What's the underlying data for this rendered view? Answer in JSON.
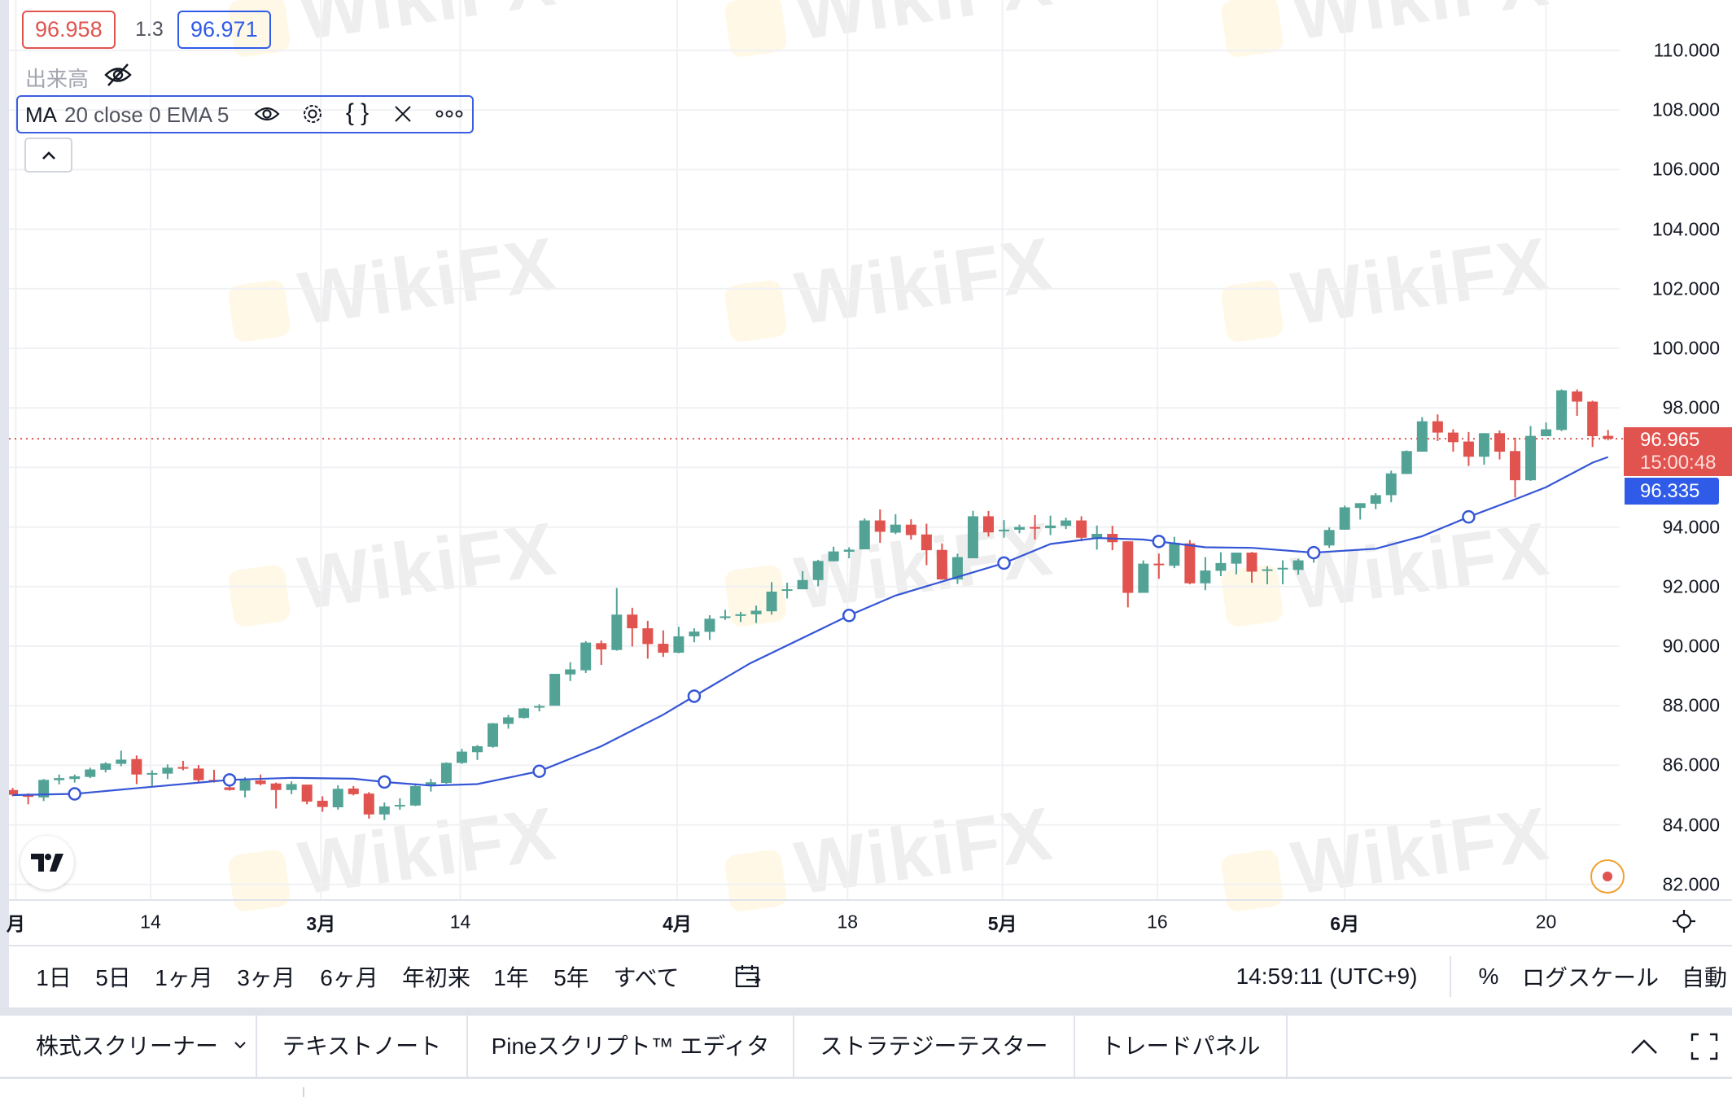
{
  "legend": {
    "bid": "96.958",
    "spread": "1.3",
    "ask": "96.971",
    "volume_label": "出来高",
    "indicator_name": "MA",
    "indicator_params": "20 close 0 EMA 5"
  },
  "watermark_text": "WikiFX",
  "price_axis": {
    "ticks": [
      "110.000",
      "108.000",
      "106.000",
      "104.000",
      "102.000",
      "100.000",
      "98.000",
      "94.000",
      "92.000",
      "90.000",
      "88.000",
      "86.000",
      "84.000",
      "82.000"
    ],
    "last_price": "96.965",
    "countdown": "15:00:48",
    "ma_value": "96.335"
  },
  "time_axis": {
    "ticks": [
      {
        "label": "月",
        "at_bar": 0.2,
        "bold": true
      },
      {
        "label": "14",
        "at_bar": 8.9,
        "bold": false
      },
      {
        "label": "3月",
        "at_bar": 19.9,
        "bold": true
      },
      {
        "label": "14",
        "at_bar": 28.9,
        "bold": false
      },
      {
        "label": "4月",
        "at_bar": 42.9,
        "bold": true
      },
      {
        "label": "18",
        "at_bar": 53.9,
        "bold": false
      },
      {
        "label": "5月",
        "at_bar": 63.9,
        "bold": true
      },
      {
        "label": "16",
        "at_bar": 73.9,
        "bold": false
      },
      {
        "label": "6月",
        "at_bar": 86.0,
        "bold": true
      },
      {
        "label": "20",
        "at_bar": 99.0,
        "bold": false
      }
    ]
  },
  "bottom_bar": {
    "ranges": [
      "1日",
      "5日",
      "1ヶ月",
      "3ヶ月",
      "6ヶ月",
      "年初来",
      "1年",
      "5年",
      "すべて"
    ],
    "clock": "14:59:11 (UTC+9)",
    "percent": "%",
    "log_scale": "ログスケール",
    "auto": "自動"
  },
  "panel_tabs": [
    "株式スクリーナー",
    "テキストノート",
    "Pineスクリプト™ エディタ",
    "ストラテジーテスター",
    "トレードパネル"
  ],
  "colors": {
    "up": "#52a396",
    "down": "#e0534e",
    "ma_line": "#3556d6",
    "ask_blue": "#2f5be8",
    "last_price_bg": "#e0534e",
    "grid": "#f0f1f4"
  },
  "chart_data": {
    "type": "candlestick",
    "ylim": [
      82,
      110
    ],
    "y_grid_step": 2,
    "grid": true,
    "ohlc": [
      [
        85.17,
        85.24,
        84.96,
        85.01
      ],
      [
        85.03,
        85.06,
        84.69,
        84.94
      ],
      [
        84.92,
        85.54,
        84.8,
        85.51
      ],
      [
        85.5,
        85.69,
        85.36,
        85.57
      ],
      [
        85.54,
        85.69,
        85.42,
        85.63
      ],
      [
        85.61,
        85.92,
        85.57,
        85.86
      ],
      [
        85.85,
        86.1,
        85.76,
        86.06
      ],
      [
        86.05,
        86.49,
        85.97,
        86.19
      ],
      [
        86.21,
        86.33,
        85.37,
        85.69
      ],
      [
        85.7,
        85.83,
        85.31,
        85.74
      ],
      [
        85.72,
        86.03,
        85.54,
        85.92
      ],
      [
        85.94,
        86.15,
        85.83,
        85.9
      ],
      [
        85.89,
        86.01,
        85.42,
        85.5
      ],
      [
        85.51,
        85.85,
        85.42,
        85.46
      ],
      [
        85.26,
        85.33,
        85.15,
        85.17
      ],
      [
        85.15,
        85.6,
        84.92,
        85.5
      ],
      [
        85.49,
        85.69,
        85.33,
        85.37
      ],
      [
        85.39,
        85.42,
        84.55,
        85.17
      ],
      [
        85.17,
        85.46,
        85.03,
        85.37
      ],
      [
        85.35,
        85.35,
        84.69,
        84.78
      ],
      [
        84.81,
        84.96,
        84.44,
        84.6
      ],
      [
        84.59,
        85.33,
        84.51,
        85.21
      ],
      [
        85.22,
        85.3,
        84.99,
        85.03
      ],
      [
        85.05,
        85.1,
        84.21,
        84.35
      ],
      [
        84.35,
        84.75,
        84.16,
        84.62
      ],
      [
        84.62,
        84.89,
        84.51,
        84.67
      ],
      [
        84.65,
        85.33,
        84.63,
        85.3
      ],
      [
        85.3,
        85.54,
        85.12,
        85.43
      ],
      [
        85.41,
        86.1,
        85.38,
        86.08
      ],
      [
        86.08,
        86.55,
        86.05,
        86.46
      ],
      [
        86.44,
        86.68,
        86.18,
        86.64
      ],
      [
        86.62,
        87.42,
        86.59,
        87.41
      ],
      [
        87.39,
        87.69,
        87.23,
        87.61
      ],
      [
        87.59,
        87.93,
        87.57,
        87.91
      ],
      [
        87.94,
        88.05,
        87.81,
        87.99
      ],
      [
        88.0,
        89.07,
        88.0,
        89.07
      ],
      [
        89.05,
        89.46,
        88.83,
        89.22
      ],
      [
        89.19,
        90.17,
        89.1,
        90.12
      ],
      [
        90.1,
        90.19,
        89.37,
        89.89
      ],
      [
        89.87,
        91.95,
        89.85,
        91.06
      ],
      [
        91.06,
        91.29,
        89.99,
        90.6
      ],
      [
        90.6,
        90.85,
        89.58,
        90.07
      ],
      [
        90.08,
        90.53,
        89.64,
        89.78
      ],
      [
        89.78,
        90.65,
        89.76,
        90.33
      ],
      [
        90.33,
        90.6,
        90.13,
        90.49
      ],
      [
        90.48,
        91.04,
        90.21,
        90.92
      ],
      [
        90.95,
        91.22,
        90.88,
        91.0
      ],
      [
        91.03,
        91.15,
        90.81,
        91.07
      ],
      [
        91.07,
        91.36,
        90.78,
        91.19
      ],
      [
        91.17,
        92.15,
        91.06,
        91.83
      ],
      [
        91.86,
        92.13,
        91.6,
        91.91
      ],
      [
        91.91,
        92.52,
        91.91,
        92.22
      ],
      [
        92.22,
        92.9,
        92.01,
        92.86
      ],
      [
        92.85,
        93.34,
        92.85,
        93.18
      ],
      [
        93.17,
        93.32,
        92.95,
        93.24
      ],
      [
        93.25,
        94.29,
        93.25,
        94.22
      ],
      [
        94.22,
        94.59,
        93.47,
        93.84
      ],
      [
        93.81,
        94.43,
        93.76,
        94.08
      ],
      [
        94.08,
        94.26,
        93.58,
        93.73
      ],
      [
        93.75,
        94.11,
        92.72,
        93.22
      ],
      [
        93.23,
        93.45,
        92.24,
        92.24
      ],
      [
        92.24,
        93.11,
        92.09,
        92.99
      ],
      [
        92.95,
        94.54,
        92.95,
        94.36
      ],
      [
        94.36,
        94.54,
        93.68,
        93.82
      ],
      [
        93.87,
        94.23,
        93.64,
        93.91
      ],
      [
        93.91,
        94.08,
        93.79,
        94.0
      ],
      [
        94.0,
        94.4,
        93.58,
        93.97
      ],
      [
        93.96,
        94.38,
        93.73,
        94.05
      ],
      [
        94.04,
        94.31,
        93.93,
        94.22
      ],
      [
        94.22,
        94.36,
        93.52,
        93.64
      ],
      [
        93.64,
        94.05,
        93.24,
        93.77
      ],
      [
        93.77,
        94.04,
        93.22,
        93.49
      ],
      [
        93.52,
        93.52,
        91.3,
        91.79
      ],
      [
        91.79,
        92.88,
        91.79,
        92.77
      ],
      [
        92.77,
        93.11,
        92.26,
        92.74
      ],
      [
        92.7,
        93.67,
        92.62,
        93.47
      ],
      [
        93.45,
        93.56,
        92.08,
        92.11
      ],
      [
        92.11,
        92.99,
        91.88,
        92.54
      ],
      [
        92.53,
        93.15,
        92.35,
        92.79
      ],
      [
        92.77,
        93.14,
        92.41,
        93.14
      ],
      [
        93.14,
        93.16,
        92.13,
        92.5
      ],
      [
        92.54,
        92.68,
        92.08,
        92.58
      ],
      [
        92.59,
        92.88,
        92.08,
        92.63
      ],
      [
        92.56,
        92.93,
        92.4,
        92.88
      ],
      [
        92.99,
        93.3,
        92.8,
        93.2
      ],
      [
        93.38,
        93.99,
        93.3,
        93.9
      ],
      [
        93.91,
        94.72,
        93.91,
        94.66
      ],
      [
        94.64,
        94.8,
        94.25,
        94.8
      ],
      [
        94.78,
        95.14,
        94.6,
        95.07
      ],
      [
        95.07,
        95.89,
        94.83,
        95.8
      ],
      [
        95.78,
        96.57,
        95.78,
        96.55
      ],
      [
        96.53,
        97.69,
        96.53,
        97.55
      ],
      [
        97.55,
        97.78,
        96.89,
        97.17
      ],
      [
        97.17,
        97.28,
        96.53,
        96.85
      ],
      [
        96.87,
        97.19,
        96.05,
        96.36
      ],
      [
        96.36,
        97.15,
        96.09,
        97.15
      ],
      [
        97.15,
        97.24,
        96.27,
        96.53
      ],
      [
        96.55,
        97.0,
        94.99,
        95.57
      ],
      [
        95.57,
        97.39,
        95.55,
        97.06
      ],
      [
        97.05,
        97.51,
        97.05,
        97.28
      ],
      [
        97.26,
        98.62,
        97.22,
        98.59
      ],
      [
        98.55,
        98.62,
        97.73,
        98.21
      ],
      [
        98.21,
        98.24,
        96.69,
        97.05
      ],
      [
        97.06,
        97.26,
        96.91,
        96.965
      ]
    ],
    "ma_series": [
      [
        0,
        85.0
      ],
      [
        4,
        85.04
      ],
      [
        9,
        85.28
      ],
      [
        14,
        85.51
      ],
      [
        18,
        85.58
      ],
      [
        22,
        85.55
      ],
      [
        24,
        85.44
      ],
      [
        27,
        85.32
      ],
      [
        30,
        85.37
      ],
      [
        34,
        85.8
      ],
      [
        38,
        86.64
      ],
      [
        42,
        87.7
      ],
      [
        44,
        88.32
      ],
      [
        47.6,
        89.42
      ],
      [
        54,
        91.03
      ],
      [
        57,
        91.7
      ],
      [
        64,
        92.79
      ],
      [
        67,
        93.43
      ],
      [
        70,
        93.63
      ],
      [
        73,
        93.58
      ],
      [
        77,
        93.32
      ],
      [
        80,
        93.3
      ],
      [
        84,
        93.14
      ],
      [
        88,
        93.27
      ],
      [
        91,
        93.69
      ],
      [
        94,
        94.34
      ],
      [
        97,
        94.93
      ],
      [
        99,
        95.34
      ],
      [
        102,
        96.16
      ],
      [
        103,
        96.35
      ]
    ],
    "ma_markers_at_bars": [
      4,
      14,
      24,
      34,
      44,
      54,
      64,
      74,
      84,
      94
    ],
    "last_price_line": 96.965
  }
}
